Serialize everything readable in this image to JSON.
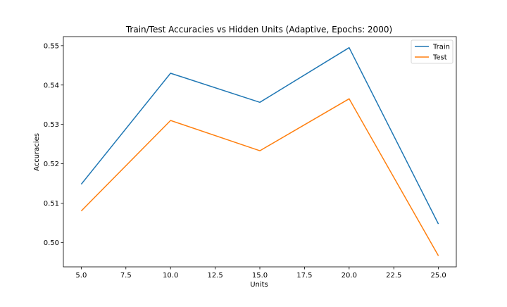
{
  "chart_data": {
    "type": "line",
    "title": "Train/Test Accuracies vs Hidden Units (Adaptive, Epochs: 2000)",
    "xlabel": "Units",
    "ylabel": "Accuracies",
    "x": [
      5,
      10,
      15,
      20,
      25
    ],
    "series": [
      {
        "name": "Train",
        "values": [
          0.5148,
          0.543,
          0.5356,
          0.5495,
          0.5047
        ],
        "color": "#1f77b4"
      },
      {
        "name": "Test",
        "values": [
          0.508,
          0.531,
          0.5233,
          0.5365,
          0.4966
        ],
        "color": "#ff7f0e"
      }
    ],
    "xlim": [
      4.0,
      26.0
    ],
    "ylim": [
      0.4938,
      0.5523
    ],
    "xticks": [
      "5.0",
      "7.5",
      "10.0",
      "12.5",
      "15.0",
      "17.5",
      "20.0",
      "22.5",
      "25.0"
    ],
    "yticks": [
      "0.50",
      "0.51",
      "0.52",
      "0.53",
      "0.54",
      "0.55"
    ],
    "grid": false,
    "legend": "top-right"
  }
}
